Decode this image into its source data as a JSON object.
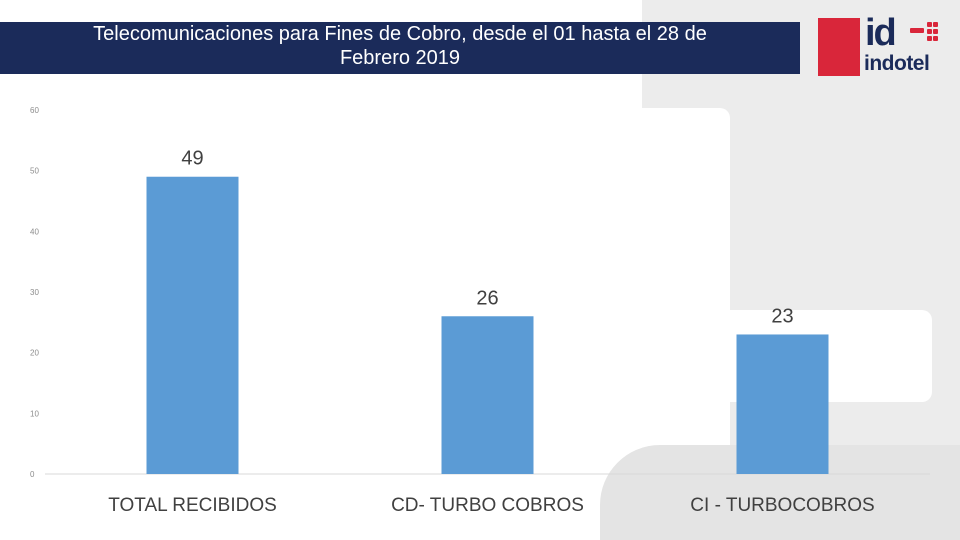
{
  "header": {
    "title_line1": "Telecomunicaciones para Fines de Cobro, desde el 01 hasta el 28 de",
    "title_line2": "Febrero 2019"
  },
  "logo": {
    "mark_text": "id",
    "word_text": "indotel"
  },
  "colors": {
    "header_bg": "#1b2b5a",
    "bar": "#5b9bd5",
    "logo_red": "#d9263a"
  },
  "chart_data": {
    "type": "bar",
    "title": "Telecomunicaciones para Fines de Cobro, desde el 01 hasta el 28 de Febrero 2019",
    "categories": [
      "TOTAL RECIBIDOS",
      "CD- TURBO COBROS",
      "CI - TURBOCOBROS"
    ],
    "values": [
      49,
      26,
      23
    ],
    "data_labels": [
      "49",
      "26",
      "23"
    ],
    "yticks": [
      0,
      10,
      20,
      30,
      40,
      50,
      60
    ],
    "ylim": [
      0,
      60
    ],
    "xlabel": "",
    "ylabel": "",
    "grid": false,
    "legend": "none"
  }
}
